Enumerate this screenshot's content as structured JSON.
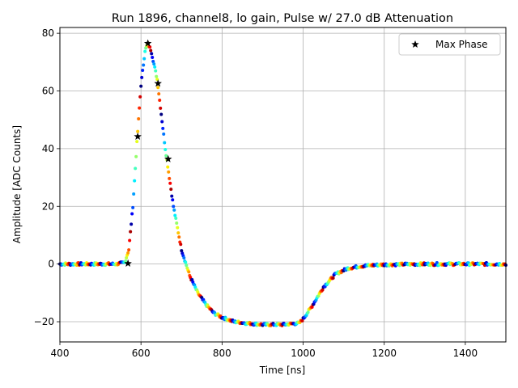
{
  "chart_data": {
    "type": "scatter",
    "title": "Run 1896, channel8, lo gain, Pulse w/ 27.0 dB Attenuation",
    "xlabel": "Time [ns]",
    "ylabel": "Amplitude [ADC Counts]",
    "xlim": [
      400,
      1500
    ],
    "ylim": [
      -27,
      82
    ],
    "xticks": [
      400,
      600,
      800,
      1000,
      1200,
      1400
    ],
    "xtick_labels": [
      "400",
      "600",
      "800",
      "1000",
      "1200",
      "1400"
    ],
    "yticks": [
      -20,
      0,
      20,
      40,
      60,
      80
    ],
    "ytick_labels": [
      "−20",
      "0",
      "20",
      "40",
      "60",
      "80"
    ],
    "grid": true,
    "legend": {
      "position": "top-right",
      "entries": [
        "Max Phase"
      ]
    },
    "colormap": "jet",
    "series": [
      {
        "name": "Max Phase",
        "marker": "star",
        "color": "#000000",
        "x": [
          568,
          592,
          617,
          642,
          667
        ],
        "y": [
          0.2,
          44.2,
          76.5,
          62.6,
          36.4
        ]
      }
    ],
    "pulse_profile": {
      "description_free": true,
      "x": [
        400,
        540,
        560,
        570,
        580,
        590,
        600,
        610,
        617,
        625,
        640,
        660,
        680,
        700,
        720,
        740,
        760,
        780,
        800,
        830,
        860,
        900,
        950,
        990,
        1000,
        1020,
        1050,
        1080,
        1110,
        1140,
        1170,
        1200,
        1300,
        1400,
        1500
      ],
      "y": [
        0,
        0,
        0.5,
        5,
        20,
        42,
        62,
        74,
        76.5,
        74,
        64,
        40,
        20,
        5,
        -4,
        -10,
        -14,
        -17,
        -18.5,
        -20,
        -20.5,
        -21,
        -21,
        -20.5,
        -19,
        -15,
        -8,
        -3.5,
        -1.5,
        -0.8,
        -0.4,
        -0.2,
        0,
        0,
        0
      ]
    }
  }
}
